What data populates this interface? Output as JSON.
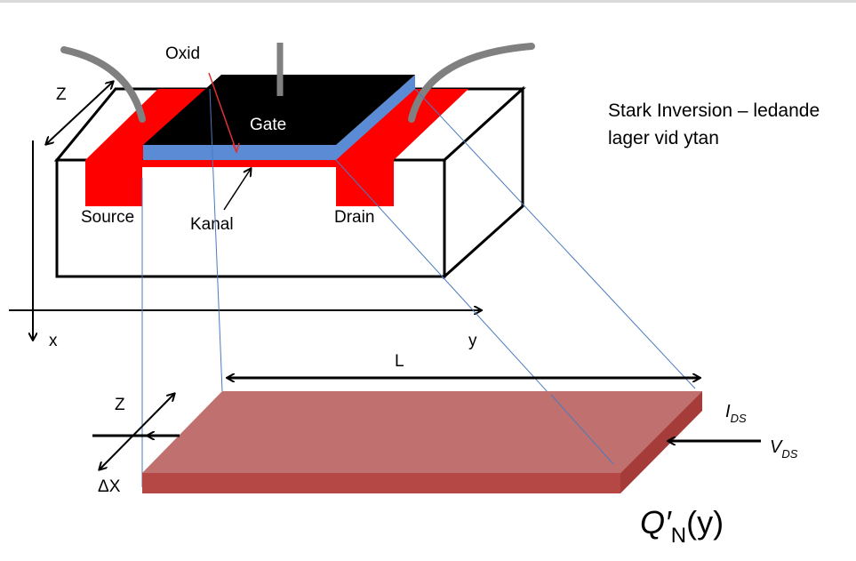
{
  "labels": {
    "oxid": "Oxid",
    "gate": "Gate",
    "source": "Source",
    "kanal": "Kanal",
    "drain": "Drain",
    "z_top": "Z",
    "x_axis": "x",
    "y_axis": "y",
    "length": "L",
    "z_bottom": "Z",
    "delta_x": "ΔX",
    "ids_main": "I",
    "ids_sub": "DS",
    "vds_main": "V",
    "vds_sub": "DS",
    "charge_main": "Q′",
    "charge_sub": "N",
    "charge_arg": "(y)"
  },
  "description": {
    "line1": "Stark Inversion – ledande",
    "line2": "lager vid ytan"
  },
  "colors": {
    "gate": "#000000",
    "oxide": "#5b8bd5",
    "doped": "#ff0000",
    "wire": "#808080",
    "slab_top": "#c0706e",
    "slab_front": "#b54745",
    "slab_side": "#a63c3a",
    "projection": "#4a7ac0"
  }
}
